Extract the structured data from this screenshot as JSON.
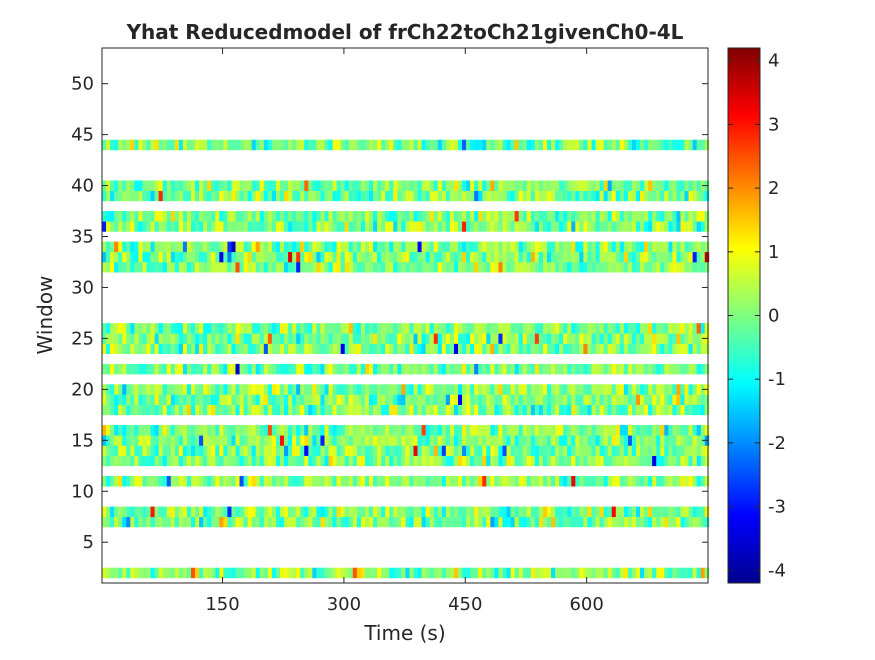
{
  "chart_data": {
    "type": "heatmap",
    "title": "Yhat Reducedmodel of frCh22toCh21givenCh0-4L",
    "xlabel": "Time (s)",
    "ylabel": "Window",
    "xlim": [
      1,
      750
    ],
    "ylim": [
      1,
      53.5
    ],
    "xticks": [
      150,
      300,
      450,
      600
    ],
    "yticks": [
      5,
      10,
      15,
      20,
      25,
      30,
      35,
      40,
      45,
      50
    ],
    "colorbar": {
      "limits": [
        -4.2,
        4.2
      ],
      "ticks": [
        -4,
        -3,
        -2,
        -1,
        0,
        1,
        2,
        3,
        4
      ],
      "colormap": "jet"
    },
    "rows_with_data": [
      2,
      7,
      8,
      11,
      13,
      14,
      15,
      16,
      18,
      19,
      20,
      22,
      24,
      25,
      26,
      32,
      33,
      34,
      36,
      37,
      39,
      40,
      44
    ],
    "value_range_note": ""
  }
}
